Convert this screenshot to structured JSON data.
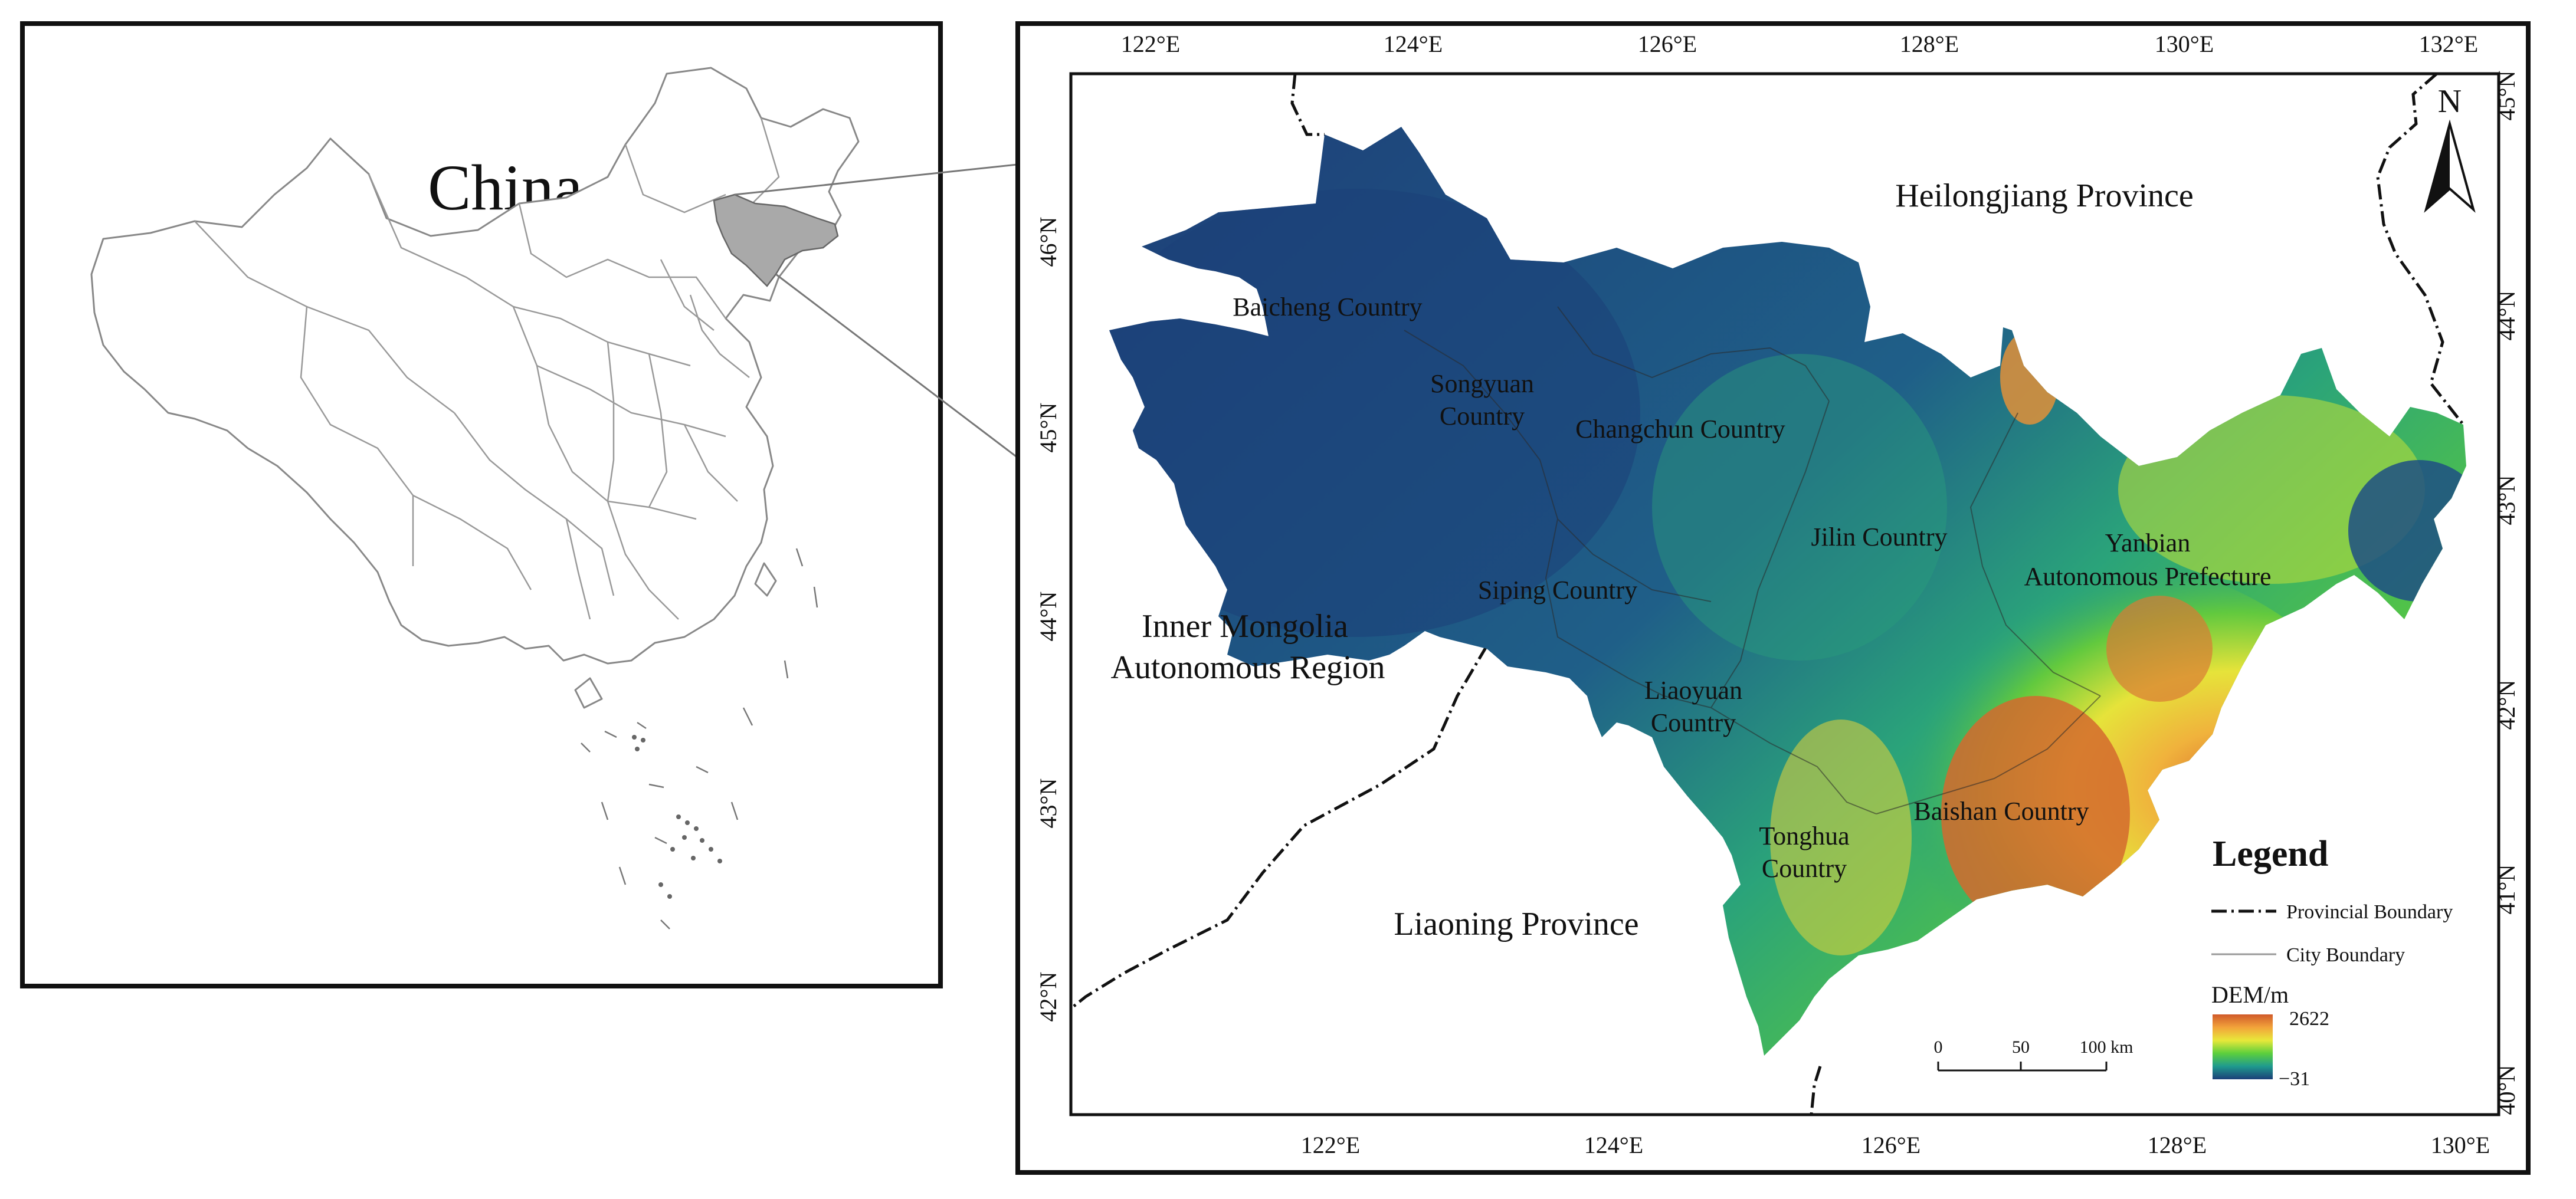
{
  "inset": {
    "title": "China"
  },
  "map": {
    "top_ticks": [
      "122°E",
      "124°E",
      "126°E",
      "128°E",
      "130°E",
      "132°E"
    ],
    "bottom_ticks": [
      "122°E",
      "124°E",
      "126°E",
      "128°E",
      "130°E"
    ],
    "left_ticks": [
      "46°N",
      "45°N",
      "44°N",
      "43°N",
      "42°N"
    ],
    "right_ticks": [
      "45°N",
      "44°N",
      "43°N",
      "42°N",
      "41°N",
      "40°N"
    ],
    "north_arrow": "N",
    "regions": {
      "baicheng": "Baicheng Country",
      "songyuan_1": "Songyuan",
      "songyuan_2": "Country",
      "changchun": "Changchun Country",
      "jilin": "Jilin Country",
      "yanbian_1": "Yanbian",
      "yanbian_2": "Autonomous Prefecture",
      "siping": "Siping Country",
      "liaoyuan_1": "Liaoyuan",
      "liaoyuan_2": "Country",
      "tonghua_1": "Tonghua",
      "tonghua_2": "Country",
      "baishan": "Baishan Country"
    },
    "outside": {
      "heilongjiang": "Heilongjiang Province",
      "inner_mongolia_1": "Inner Mongolia",
      "inner_mongolia_2": "Autonomous Region",
      "liaoning": "Liaoning Province"
    },
    "scale_bar": {
      "ticks": [
        "0",
        "50",
        "100 km"
      ]
    },
    "legend": {
      "title": "Legend",
      "provincial": "Provincial Boundary",
      "city": "City Boundary",
      "dem_title": "DEM/m",
      "dem_max": "2622",
      "dem_min": "−31"
    }
  }
}
